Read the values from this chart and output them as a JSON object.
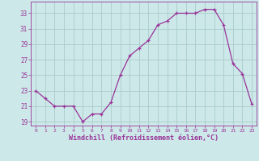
{
  "x": [
    0,
    1,
    2,
    3,
    4,
    5,
    6,
    7,
    8,
    9,
    10,
    11,
    12,
    13,
    14,
    15,
    16,
    17,
    18,
    19,
    20,
    21,
    22,
    23
  ],
  "y": [
    23,
    22,
    21.0,
    21.0,
    21.0,
    19.0,
    20.0,
    20.0,
    21.5,
    25.0,
    27.5,
    28.5,
    29.5,
    31.5,
    32.0,
    33.0,
    33.0,
    33.0,
    33.5,
    33.5,
    31.5,
    26.5,
    25.2,
    21.3
  ],
  "line_color": "#993399",
  "bg_color": "#cce8e8",
  "grid_color": "#aacccc",
  "xlabel": "Windchill (Refroidissement éolien,°C)",
  "tick_color": "#993399",
  "ylim": [
    18.5,
    34.5
  ],
  "yticks": [
    19,
    21,
    23,
    25,
    27,
    29,
    31,
    33
  ],
  "xticks": [
    0,
    1,
    2,
    3,
    4,
    5,
    6,
    7,
    8,
    9,
    10,
    11,
    12,
    13,
    14,
    15,
    16,
    17,
    18,
    19,
    20,
    21,
    22,
    23
  ],
  "xlim": [
    -0.5,
    23.5
  ]
}
